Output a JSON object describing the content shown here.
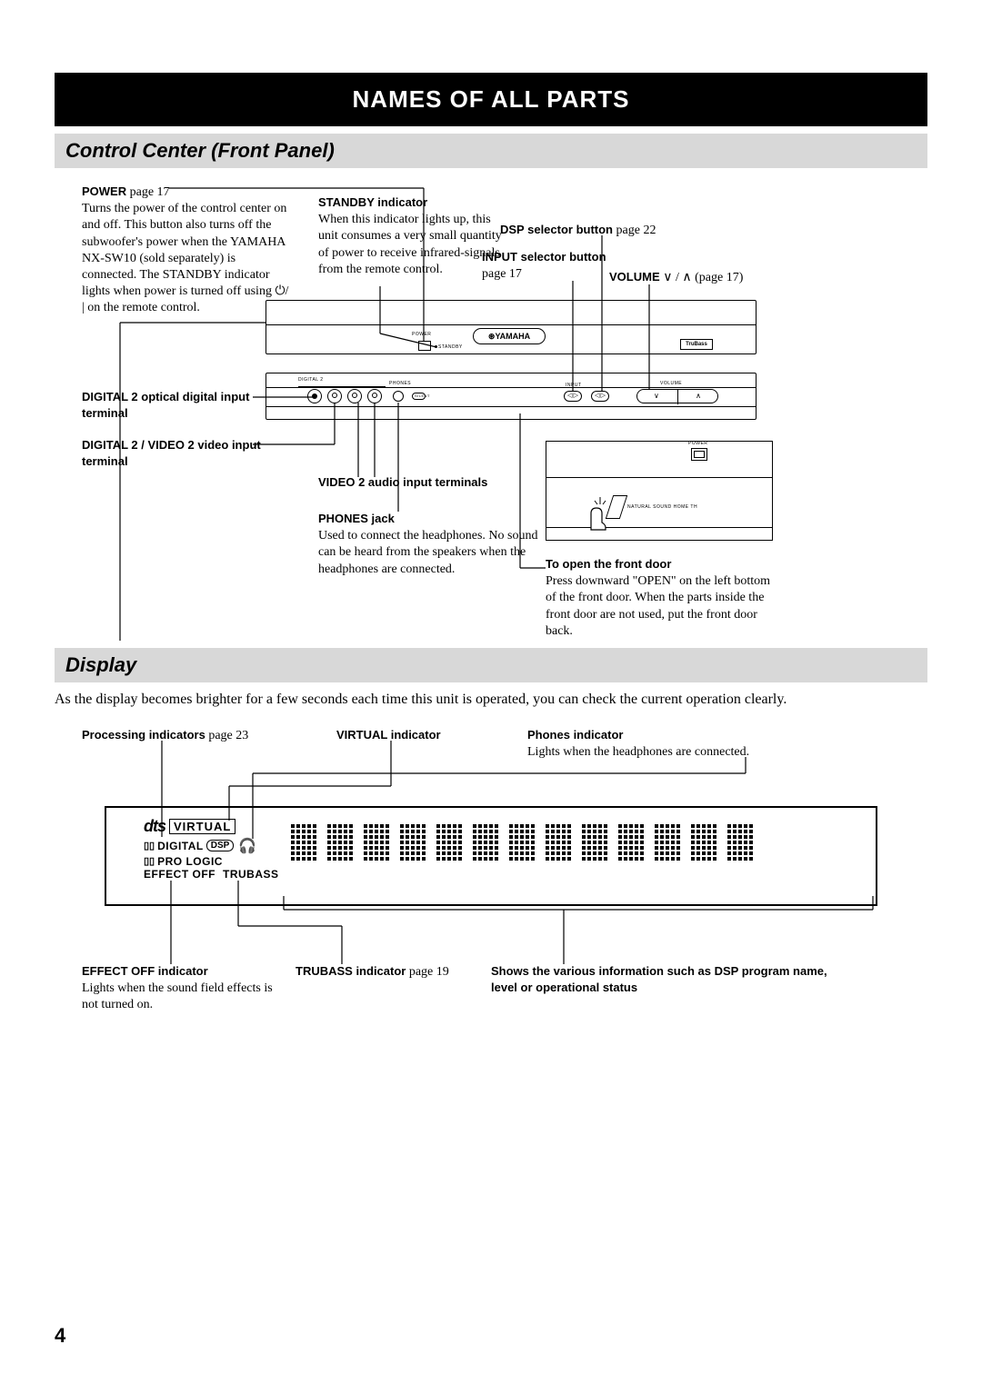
{
  "page_number": "4",
  "title": "NAMES OF ALL PARTS",
  "section1": {
    "heading": "Control Center (Front Panel)",
    "callouts": {
      "power": {
        "label": "POWER",
        "page_ref": " page 17",
        "body": "Turns the power of the control center on and off. This button also turns off the subwoofer's power when the YAMAHA NX-SW10 (sold separately) is connected. The STANDBY indicator lights when power is turned off using ⏻/ | on the remote control."
      },
      "standby": {
        "label": "STANDBY indicator",
        "body": "When this indicator lights up, this unit consumes a very small quantity of power to receive infrared-signals from the remote control."
      },
      "dsp": {
        "label": "DSP selector button",
        "page_ref": " page 22"
      },
      "input": {
        "label": "INPUT selector button",
        "page_ref": " page 17"
      },
      "volume": {
        "label": "VOLUME ",
        "symbols": "∨ / ∧",
        "page_ref": " (page 17)"
      },
      "digital2_optical": {
        "label": "DIGITAL 2 optical digital input terminal"
      },
      "digital2_video": {
        "label": "DIGITAL 2 / VIDEO 2 video input terminal"
      },
      "video2_audio": {
        "label": "VIDEO 2 audio input terminals"
      },
      "phones": {
        "label": "PHONES jack",
        "body": "Used to connect the headphones. No sound can be heard from the speakers when the headphones are connected."
      },
      "front_door": {
        "label": "To open the front door",
        "body": "Press downward \"OPEN\" on the left bottom of the front door. When the parts inside the front door are not used, put the front door back."
      }
    },
    "device_labels": {
      "brand": "YAMAHA",
      "power": "POWER",
      "standby": "STANDBY",
      "phones": "PHONES",
      "silent": "SILENT",
      "input": "INPUT",
      "digital2": "DIGITAL 2",
      "trubass": "TruBass",
      "volume": "VOLUME",
      "natural": "NATURAL SOUND HOME TH",
      "front_power": "POWER"
    }
  },
  "section2": {
    "heading": "Display",
    "intro": "As the display becomes brighter for a few seconds each time this unit is operated, you can check the current operation clearly.",
    "callouts": {
      "processing": {
        "label": "Processing indicators",
        "page_ref": " page 23"
      },
      "virtual": {
        "label": "VIRTUAL indicator"
      },
      "phones": {
        "label": "Phones indicator",
        "body": "Lights when the headphones are connected."
      },
      "effect_off": {
        "label": "EFFECT OFF indicator",
        "body": "Lights when the sound field effects is not turned on."
      },
      "trubass": {
        "label": "TRUBASS indicator",
        "page_ref": " page 19"
      },
      "info": {
        "label": "Shows the various information such as DSP program name, level or operational status"
      }
    },
    "indicators": {
      "dts": "dts",
      "virtual": "VIRTUAL",
      "dolby_digital": "DIGITAL",
      "dsp": "DSP",
      "prologic": "PRO LOGIC",
      "effect_off": "EFFECT OFF",
      "trubass": "TRUBASS"
    }
  },
  "colors": {
    "background": "#ffffff",
    "black": "#000000",
    "section_bg": "#d8d8d8"
  }
}
